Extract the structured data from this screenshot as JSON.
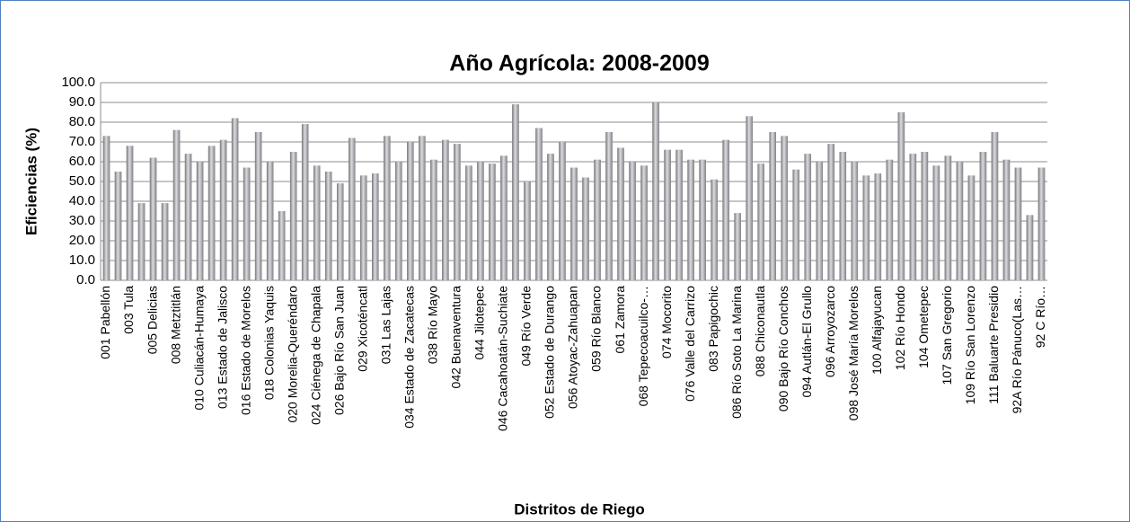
{
  "chart_data": {
    "type": "bar",
    "title": "Año Agrícola: 2008-2009",
    "x_label": "Distritos de Riego",
    "y_label": "Eficiencias (%)",
    "categories": [
      "001 Pabellón",
      null,
      "003 Tula",
      null,
      "005 Delicias",
      null,
      "008 Metztitlán",
      null,
      "010 Culiacán-Humaya",
      null,
      "013 Estado de Jalisco",
      null,
      "016 Estado de Morelos",
      null,
      "018 Colonias Yaquis",
      null,
      "020 Morelia-Queréndaro",
      null,
      "024 Ciénega de Chapala",
      null,
      "026 Bajo Río San Juan",
      null,
      "029 Xicoténcatl",
      null,
      "031 Las Lajas",
      null,
      "034 Estado de Zacatecas",
      null,
      "038 Río Mayo",
      null,
      "042 Buenaventura",
      null,
      "044 Jilotepec",
      null,
      "046 Cacahoatán-Suchiate",
      null,
      "049 Río Verde",
      null,
      "052 Estado de Durango",
      null,
      "056 Atoyac-Zahuapan",
      null,
      "059 Río Blanco",
      null,
      "061 Zamora",
      null,
      "068 Tepecoacuilco-…",
      null,
      "074 Mocorito",
      null,
      "076 Valle del Carrizo",
      null,
      "083 Papigochic",
      null,
      "086 Río Soto La Marina",
      null,
      "088 Chiconautla",
      null,
      "090 Bajo Río Conchos",
      null,
      "094 Autlán-El Grullo",
      null,
      "096 Arroyozarco",
      null,
      "098 José María Morelos",
      null,
      "100 Alfajayucan",
      null,
      "102 Río Hondo",
      null,
      "104 Ometepec",
      null,
      "107 San Gregorio",
      null,
      "109 Río San Lorenzo",
      null,
      "111 Baluarte Presidio",
      null,
      "92A Río Pánuco(Las…",
      null,
      "92 C Río…"
    ],
    "values": [
      73,
      55,
      68,
      39,
      62,
      39,
      76,
      64,
      60,
      68,
      71,
      82,
      57,
      75,
      60,
      35,
      65,
      79,
      58,
      55,
      49,
      72,
      53,
      54,
      73,
      60,
      70,
      73,
      61,
      71,
      69,
      58,
      60,
      59,
      63,
      89,
      50,
      77,
      64,
      70,
      57,
      52,
      61,
      75,
      67,
      60,
      58,
      90,
      66,
      66,
      61,
      61,
      51,
      71,
      34,
      83,
      59,
      75,
      73,
      56,
      64,
      60,
      69,
      65,
      60,
      53,
      54,
      61,
      85,
      64,
      65,
      58,
      63,
      60,
      53,
      65,
      75,
      61,
      57,
      33,
      57
    ],
    "color": "#a3a3a8",
    "ylim": [
      0,
      100
    ],
    "yticks": [
      {
        "value": 0,
        "label": "0.0"
      },
      {
        "value": 10,
        "label": "10.0"
      },
      {
        "value": 20,
        "label": "20.0"
      },
      {
        "value": 30,
        "label": "30.0"
      },
      {
        "value": 40,
        "label": "40.0"
      },
      {
        "value": 50,
        "label": "50.0"
      },
      {
        "value": 60,
        "label": "60.0"
      },
      {
        "value": 70,
        "label": "70.0"
      },
      {
        "value": 80,
        "label": "80.0"
      },
      {
        "value": 90,
        "label": "90.0"
      },
      {
        "value": 100,
        "label": "100.0"
      }
    ],
    "grid": true
  }
}
